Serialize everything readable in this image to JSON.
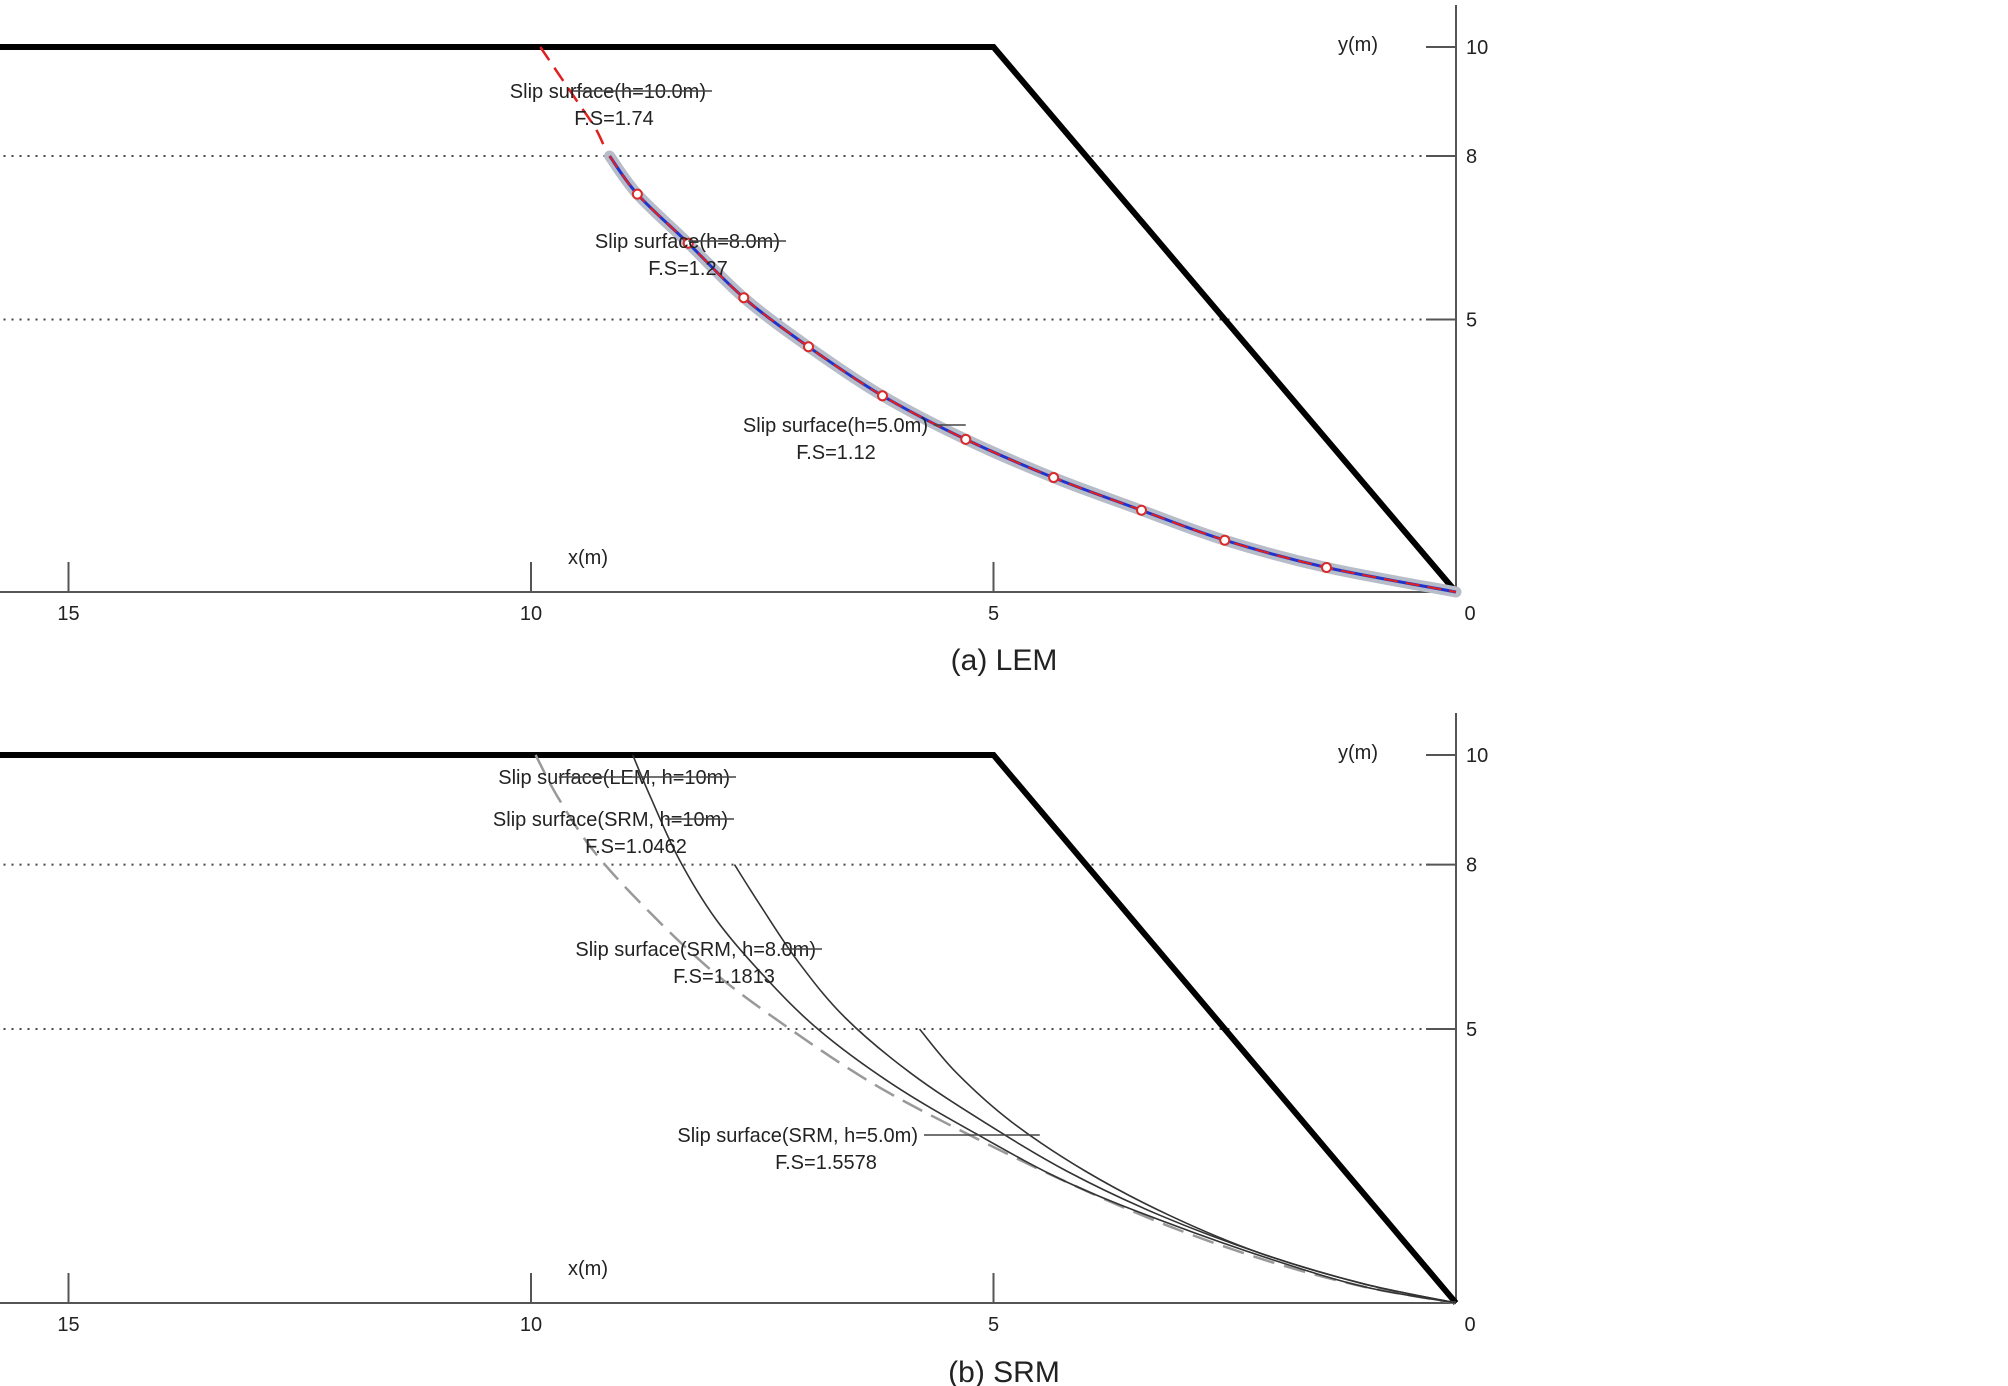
{
  "chart_data": [
    {
      "type": "line",
      "caption": "(a)  LEM",
      "xlabel": "x(m)",
      "ylabel": "y(m)",
      "xlim": [
        17,
        0
      ],
      "ylim": [
        0,
        10
      ],
      "x_ticks": [
        "15",
        "10",
        "5",
        "0"
      ],
      "y_ticks": [
        "10",
        "8",
        "5"
      ],
      "reference_lines_y": [
        8,
        5
      ],
      "slope": {
        "x": [
          17,
          5,
          0
        ],
        "y": [
          10,
          10,
          0
        ],
        "color": "#000000"
      },
      "series": [
        {
          "name": "",
          "style": "red-dashed",
          "color": "#e0201e",
          "x": [
            9.9,
            9.7,
            9.5,
            9.3,
            9.15,
            8.85,
            8.3,
            7.7,
            7.0,
            6.2,
            5.3,
            4.35,
            3.4,
            2.5,
            1.4,
            0.0
          ],
          "y": [
            10.0,
            9.5,
            9.0,
            8.5,
            8.0,
            7.3,
            6.4,
            5.4,
            4.5,
            3.6,
            2.8,
            2.1,
            1.5,
            0.95,
            0.45,
            0.0
          ]
        },
        {
          "name": "",
          "style": "blue-with-markers",
          "color": "#2233cc",
          "halo": "#b7bcc9",
          "x": [
            9.15,
            8.85,
            8.3,
            7.7,
            7.0,
            6.2,
            5.3,
            4.35,
            3.4,
            2.5,
            1.4,
            0.0
          ],
          "y": [
            8.0,
            7.3,
            6.4,
            5.4,
            4.5,
            3.6,
            2.8,
            2.1,
            1.5,
            0.95,
            0.45,
            0.0
          ],
          "marker_points": [
            1,
            2,
            3,
            4,
            5,
            6,
            7,
            8,
            9,
            10
          ]
        }
      ],
      "annotations": [
        {
          "line1": "Slip surface(h=10.0m)",
          "line2": "F.S=1.74",
          "target": [
            9.55,
            8.9
          ]
        },
        {
          "line1": "Slip surface(h=8.0m)",
          "line2": "F.S=1.27",
          "target": [
            8.3,
            6.4
          ]
        },
        {
          "line1": "Slip surface(h=5.0m)",
          "line2": "F.S=1.12",
          "target": [
            5.3,
            2.8
          ]
        }
      ]
    },
    {
      "type": "line",
      "caption": "(b)  SRM",
      "xlabel": "x(m)",
      "ylabel": "y(m)",
      "xlim": [
        17,
        0
      ],
      "ylim": [
        0,
        10
      ],
      "x_ticks": [
        "15",
        "10",
        "5",
        "0"
      ],
      "y_ticks": [
        "10",
        "8",
        "5"
      ],
      "reference_lines_y": [
        8,
        5
      ],
      "slope": {
        "x": [
          17,
          5,
          0
        ],
        "y": [
          10,
          10,
          0
        ],
        "color": "#000000"
      },
      "series": [
        {
          "name": "",
          "style": "gray-dashed",
          "color": "#999999",
          "x": [
            9.95,
            9.7,
            9.3,
            8.7,
            8.0,
            7.2,
            6.3,
            5.3,
            4.2,
            3.1,
            2.0,
            1.0,
            0.0
          ],
          "y": [
            10.0,
            9.2,
            8.2,
            7.1,
            6.0,
            5.0,
            4.0,
            3.1,
            2.2,
            1.4,
            0.75,
            0.3,
            0.0
          ]
        },
        {
          "name": "",
          "style": "thin-solid",
          "color": "#333333",
          "x": [
            8.9,
            8.7,
            8.4,
            8.0,
            7.5,
            6.9,
            6.1,
            5.2,
            4.2,
            3.1,
            2.0,
            1.0,
            0.0
          ],
          "y": [
            10.0,
            9.2,
            8.1,
            7.0,
            6.0,
            5.0,
            4.0,
            3.1,
            2.2,
            1.45,
            0.8,
            0.3,
            0.0
          ]
        },
        {
          "name": "",
          "style": "thin-solid",
          "color": "#333333",
          "x": [
            7.8,
            7.5,
            7.1,
            6.6,
            5.9,
            5.1,
            4.2,
            3.2,
            2.1,
            1.0,
            0.0
          ],
          "y": [
            8.0,
            7.2,
            6.2,
            5.2,
            4.2,
            3.3,
            2.4,
            1.6,
            0.9,
            0.35,
            0.0
          ]
        },
        {
          "name": "",
          "style": "thin-solid",
          "color": "#333333",
          "x": [
            5.8,
            5.4,
            4.8,
            4.0,
            3.1,
            2.1,
            1.0,
            0.0
          ],
          "y": [
            5.0,
            4.2,
            3.3,
            2.4,
            1.6,
            0.9,
            0.35,
            0.0
          ]
        }
      ],
      "annotations": [
        {
          "line1": "Slip surface(LEM, h=10m)",
          "line2": "",
          "target": [
            9.7,
            9.2
          ]
        },
        {
          "line1": "Slip surface(SRM, h=10m)",
          "line2": "F.S=1.0462",
          "target": [
            8.55,
            8.65
          ]
        },
        {
          "line1": "Slip surface(SRM, h=8.0m)",
          "line2": "F.S=1.1813",
          "target": [
            7.3,
            6.7
          ]
        },
        {
          "line1": "Slip surface(SRM, h=5.0m)",
          "line2": "F.S=1.5578",
          "target": [
            4.5,
            3.0
          ]
        }
      ]
    }
  ]
}
